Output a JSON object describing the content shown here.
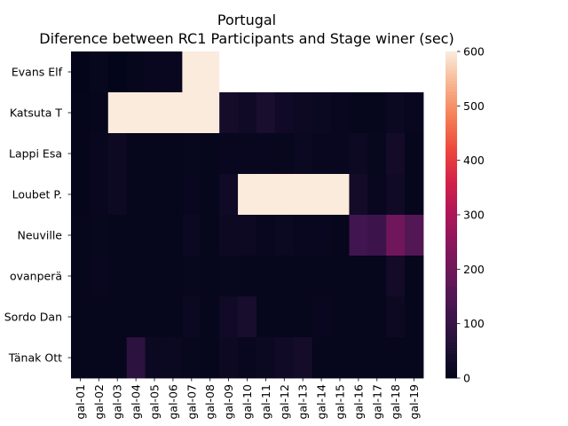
{
  "chart_data": {
    "type": "heatmap",
    "title": "Portugal",
    "subtitle": "Diference between RC1 Participants and Stage winer (sec)",
    "xlabel": "",
    "ylabel": "",
    "x_categories": [
      "gal-01",
      "gal-02",
      "gal-03",
      "gal-04",
      "gal-05",
      "gal-06",
      "gal-07",
      "gal-08",
      "gal-09",
      "gal-10",
      "gal-11",
      "gal-12",
      "gal-13",
      "gal-14",
      "gal-15",
      "gal-16",
      "gal-17",
      "gal-18",
      "gal-19"
    ],
    "x_tick_labels": [
      "gal-01",
      "gal-02",
      "gal-03",
      "gal-04",
      "gal-05",
      "gal-06",
      "gal-07",
      "gal-08",
      "gal-09",
      "gal-10",
      "gal-11",
      "gal-12",
      "gal-13",
      "gal-14",
      "gal-15",
      "gal-16",
      "gal-17",
      "gal-18",
      "gal-19"
    ],
    "y_categories": [
      "Evans  Elf",
      "Katsuta  T",
      "Lappi  Esa",
      "Loubet  P.",
      "Neuville  ",
      "Rovanperä  ",
      "Sordo  Dan",
      "Tänak  Ott"
    ],
    "y_tick_labels": [
      "Evans  Elf",
      "Katsuta  T",
      "Lappi  Esa",
      "Loubet  P.",
      "Neuville  ",
      "ovanperä",
      "Sordo  Dan",
      "Tänak  Ott"
    ],
    "values": [
      [
        2,
        8,
        0,
        5,
        10,
        10,
        600,
        600,
        null,
        null,
        null,
        null,
        null,
        null,
        null,
        null,
        null,
        null,
        null
      ],
      [
        3,
        5,
        600,
        600,
        600,
        600,
        600,
        600,
        35,
        25,
        45,
        25,
        20,
        15,
        10,
        5,
        5,
        15,
        10
      ],
      [
        3,
        12,
        20,
        5,
        5,
        5,
        8,
        5,
        12,
        10,
        12,
        8,
        15,
        12,
        10,
        20,
        8,
        30,
        5
      ],
      [
        3,
        10,
        20,
        5,
        5,
        5,
        12,
        5,
        25,
        600,
        600,
        600,
        600,
        600,
        600,
        30,
        10,
        25,
        5
      ],
      [
        5,
        8,
        5,
        5,
        5,
        5,
        15,
        5,
        20,
        20,
        12,
        15,
        10,
        10,
        5,
        120,
        110,
        200,
        150
      ],
      [
        5,
        10,
        5,
        5,
        5,
        5,
        8,
        5,
        8,
        5,
        5,
        5,
        5,
        5,
        5,
        5,
        5,
        30,
        5
      ],
      [
        5,
        5,
        5,
        5,
        5,
        5,
        15,
        5,
        25,
        40,
        5,
        5,
        5,
        10,
        5,
        5,
        5,
        20,
        5
      ],
      [
        5,
        5,
        5,
        80,
        15,
        15,
        8,
        5,
        20,
        12,
        15,
        25,
        35,
        5,
        5,
        5,
        5,
        5,
        5
      ]
    ],
    "colorbar": {
      "min": 0,
      "max": 600,
      "ticks": [
        0,
        100,
        200,
        300,
        400,
        500,
        600
      ],
      "tick_labels": [
        "0",
        "100",
        "200",
        "300",
        "400",
        "500",
        "600"
      ],
      "colormap": "rocket"
    },
    "missing_color": "#ffffff",
    "legend": "none",
    "grid": false
  }
}
